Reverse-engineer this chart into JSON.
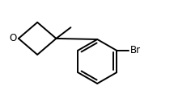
{
  "background_color": "#ffffff",
  "line_color": "#000000",
  "line_width": 1.4,
  "text_color": "#000000",
  "O_label": "O",
  "Br_label": "Br",
  "O_fontsize": 8.5,
  "Br_fontsize": 8.5,
  "figsize": [
    2.15,
    1.17
  ],
  "dpi": 100,
  "xlim": [
    0,
    10
  ],
  "ylim": [
    0,
    5.4
  ]
}
